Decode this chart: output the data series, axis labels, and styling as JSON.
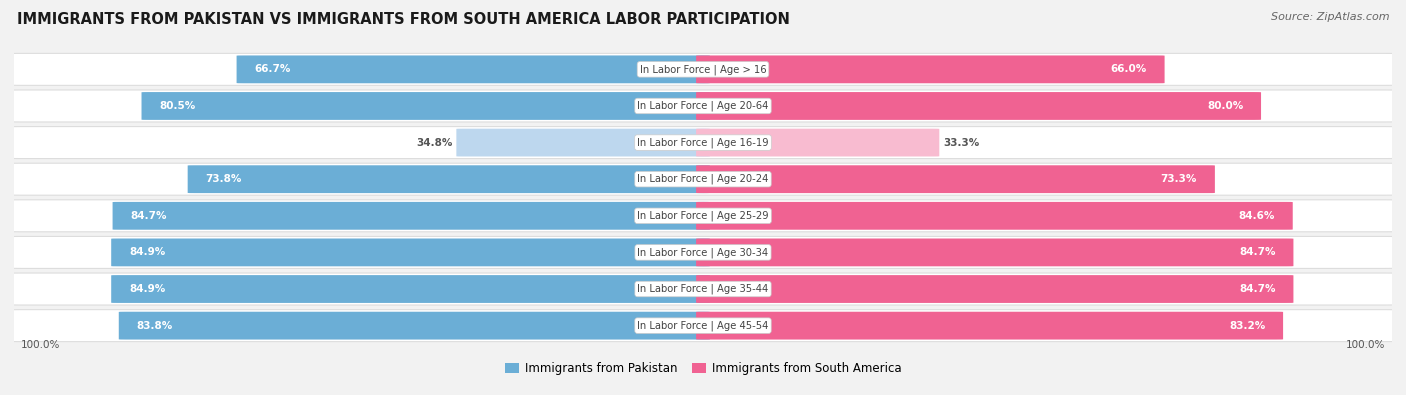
{
  "title": "IMMIGRANTS FROM PAKISTAN VS IMMIGRANTS FROM SOUTH AMERICA LABOR PARTICIPATION",
  "source": "Source: ZipAtlas.com",
  "categories": [
    "In Labor Force | Age > 16",
    "In Labor Force | Age 20-64",
    "In Labor Force | Age 16-19",
    "In Labor Force | Age 20-24",
    "In Labor Force | Age 25-29",
    "In Labor Force | Age 30-34",
    "In Labor Force | Age 35-44",
    "In Labor Force | Age 45-54"
  ],
  "pakistan_values": [
    66.7,
    80.5,
    34.8,
    73.8,
    84.7,
    84.9,
    84.9,
    83.8
  ],
  "south_america_values": [
    66.0,
    80.0,
    33.3,
    73.3,
    84.6,
    84.7,
    84.7,
    83.2
  ],
  "pakistan_color": "#6BAED6",
  "pakistan_color_light": "#BDD7EE",
  "south_america_color": "#F06292",
  "south_america_color_light": "#F8BBD0",
  "row_bg_color": "#FFFFFF",
  "outer_bg_color": "#F2F2F2",
  "row_border_color": "#DDDDDD",
  "max_value": 100.0,
  "legend_pakistan": "Immigrants from Pakistan",
  "legend_south_america": "Immigrants from South America",
  "threshold": 50.0
}
